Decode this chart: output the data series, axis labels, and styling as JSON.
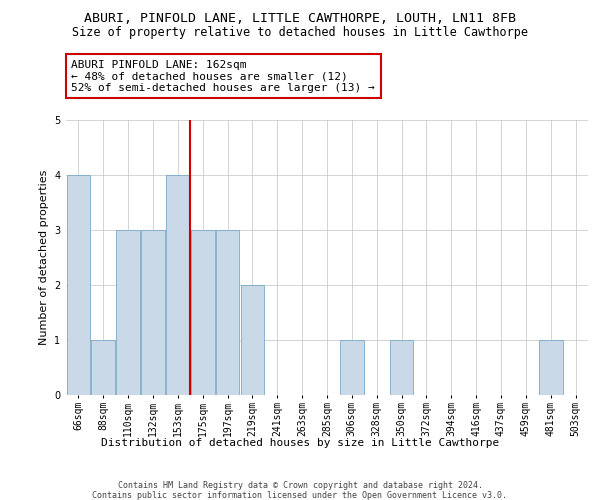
{
  "title1": "ABURI, PINFOLD LANE, LITTLE CAWTHORPE, LOUTH, LN11 8FB",
  "title2": "Size of property relative to detached houses in Little Cawthorpe",
  "xlabel": "Distribution of detached houses by size in Little Cawthorpe",
  "ylabel": "Number of detached properties",
  "categories": [
    "66sqm",
    "88sqm",
    "110sqm",
    "132sqm",
    "153sqm",
    "175sqm",
    "197sqm",
    "219sqm",
    "241sqm",
    "263sqm",
    "285sqm",
    "306sqm",
    "328sqm",
    "350sqm",
    "372sqm",
    "394sqm",
    "416sqm",
    "437sqm",
    "459sqm",
    "481sqm",
    "503sqm"
  ],
  "values": [
    4,
    1,
    3,
    3,
    4,
    3,
    3,
    2,
    0,
    0,
    0,
    1,
    0,
    1,
    0,
    0,
    0,
    0,
    0,
    1,
    0
  ],
  "bar_color": "#c9d9e8",
  "bar_edge_color": "#7aaac8",
  "reference_line_x": 4.5,
  "reference_line_color": "#cc0000",
  "annotation_text": "ABURI PINFOLD LANE: 162sqm\n← 48% of detached houses are smaller (12)\n52% of semi-detached houses are larger (13) →",
  "annotation_box_color": "#ffffff",
  "annotation_box_edge_color": "#cc0000",
  "ylim": [
    0,
    5
  ],
  "yticks": [
    0,
    1,
    2,
    3,
    4,
    5
  ],
  "grid_color": "#cccccc",
  "background_color": "#ffffff",
  "footer": "Contains HM Land Registry data © Crown copyright and database right 2024.\nContains public sector information licensed under the Open Government Licence v3.0.",
  "title_fontsize": 9.5,
  "subtitle_fontsize": 8.5,
  "axis_label_fontsize": 8,
  "tick_fontsize": 7,
  "annotation_fontsize": 8,
  "footer_fontsize": 6
}
